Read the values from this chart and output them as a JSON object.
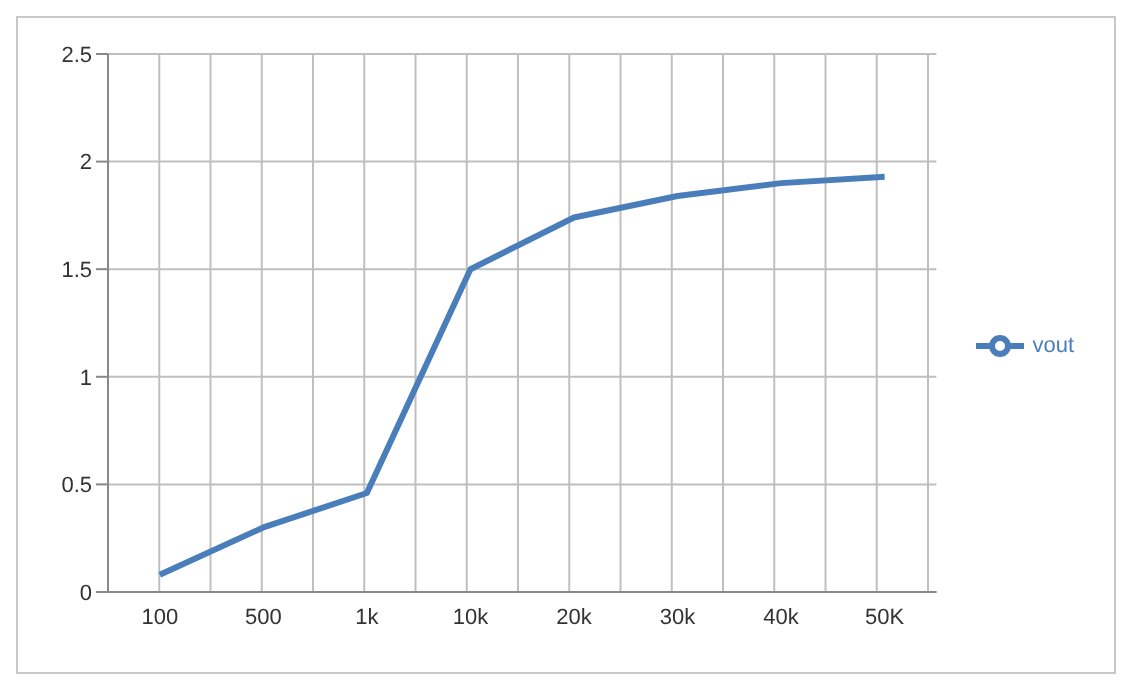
{
  "chart_data": {
    "type": "line",
    "categories": [
      "100",
      "500",
      "1k",
      "10k",
      "20k",
      "30k",
      "40k",
      "50K"
    ],
    "series": [
      {
        "name": "vout",
        "color": "#4a7ebb",
        "values": [
          0.08,
          0.3,
          0.46,
          1.5,
          1.74,
          1.84,
          1.9,
          1.93
        ]
      }
    ],
    "ylim": [
      0,
      2.5
    ],
    "yticks": [
      0,
      0.5,
      1,
      1.5,
      2,
      2.5
    ],
    "grid": true,
    "legend": "right",
    "marker": "none"
  }
}
